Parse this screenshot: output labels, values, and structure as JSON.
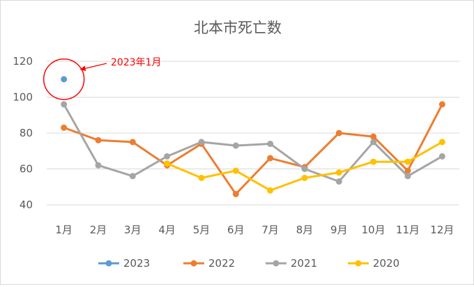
{
  "chart_data": {
    "type": "line",
    "title": "北本市死亡数",
    "categories": [
      "1月",
      "2月",
      "3月",
      "4月",
      "5月",
      "6月",
      "7月",
      "8月",
      "9月",
      "10月",
      "11月",
      "12月"
    ],
    "ylim": [
      40,
      120
    ],
    "yticks": [
      40,
      60,
      80,
      100,
      120
    ],
    "grid": true,
    "legend": "bottom",
    "series": [
      {
        "name": "2023",
        "color": "#5b9bd5",
        "values": [
          110,
          null,
          null,
          null,
          null,
          null,
          null,
          null,
          null,
          null,
          null,
          null
        ]
      },
      {
        "name": "2022",
        "color": "#ed7d31",
        "values": [
          83,
          76,
          75,
          62,
          74,
          46,
          66,
          61,
          80,
          78,
          59,
          96
        ]
      },
      {
        "name": "2021",
        "color": "#a5a5a5",
        "values": [
          96,
          62,
          56,
          67,
          75,
          73,
          74,
          60,
          53,
          75,
          56,
          67
        ]
      },
      {
        "name": "2020",
        "color": "#ffc000",
        "values": [
          null,
          null,
          null,
          63,
          55,
          59,
          48,
          55,
          58,
          64,
          64,
          75
        ]
      }
    ],
    "annotation": {
      "text": "2023年1月",
      "color": "#ff0000"
    }
  }
}
